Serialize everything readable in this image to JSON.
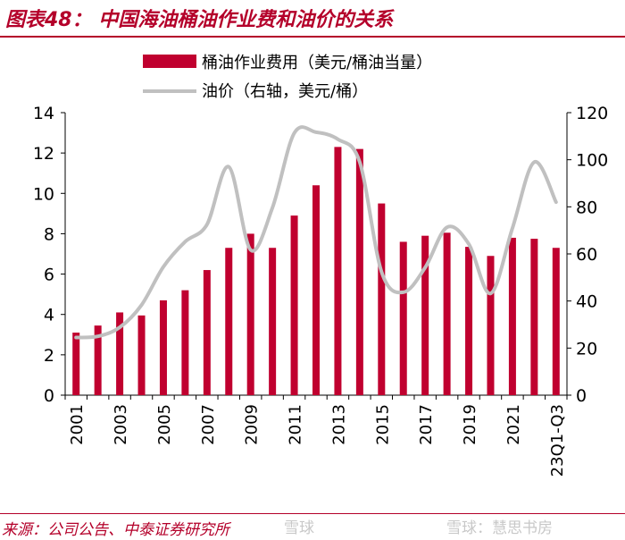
{
  "header": {
    "title": "图表48：  中国海油桶油作业费和油价的关系"
  },
  "footer": {
    "source": "来源：公司公告、中泰证券研究所",
    "watermark_left": "雪球",
    "watermark_right": "雪球：慧思书房"
  },
  "colors": {
    "bar": "#c0002f",
    "line": "#c0c0c0",
    "accent": "#b4002a",
    "axis": "#000000"
  },
  "chart_data": {
    "type": "bar",
    "title": "",
    "legend_position": "top",
    "grid": false,
    "categories": [
      "2001",
      "2002",
      "2003",
      "2004",
      "2005",
      "2006",
      "2007",
      "2008",
      "2009",
      "2010",
      "2011",
      "2012",
      "2013",
      "2014",
      "2015",
      "2016",
      "2017",
      "2018",
      "2019",
      "2020",
      "2021",
      "2022",
      "23Q1-Q3"
    ],
    "x_tick_labels": [
      "2001",
      "",
      "2003",
      "",
      "2005",
      "",
      "2007",
      "",
      "2009",
      "",
      "2011",
      "",
      "2013",
      "",
      "2015",
      "",
      "2017",
      "",
      "2019",
      "",
      "2021",
      "",
      "23Q1-Q3"
    ],
    "series": [
      {
        "name": "桶油作业费用（美元/桶油当量）",
        "type": "bar",
        "axis": "left",
        "values": [
          3.1,
          3.45,
          4.1,
          3.95,
          4.7,
          5.2,
          6.2,
          7.3,
          8.0,
          7.3,
          8.9,
          10.4,
          12.3,
          12.2,
          9.5,
          7.6,
          7.9,
          8.05,
          7.35,
          6.9,
          7.8,
          7.75,
          7.3
        ]
      },
      {
        "name": "油价（右轴，美元/桶）",
        "type": "line",
        "axis": "right",
        "values": [
          24.5,
          25.0,
          28.8,
          38.3,
          54.5,
          65.2,
          72.5,
          97.0,
          61.7,
          79.6,
          111.3,
          111.7,
          108.7,
          99.0,
          52.4,
          43.7,
          54.2,
          71.3,
          64.2,
          43.2,
          70.9,
          99.0,
          82.0
        ]
      }
    ],
    "y_left": {
      "min": 0,
      "max": 14,
      "ticks": [
        0,
        2,
        4,
        6,
        8,
        10,
        12,
        14
      ]
    },
    "y_right": {
      "min": 0,
      "max": 120,
      "ticks": [
        0,
        20,
        40,
        60,
        80,
        100,
        120
      ]
    }
  }
}
